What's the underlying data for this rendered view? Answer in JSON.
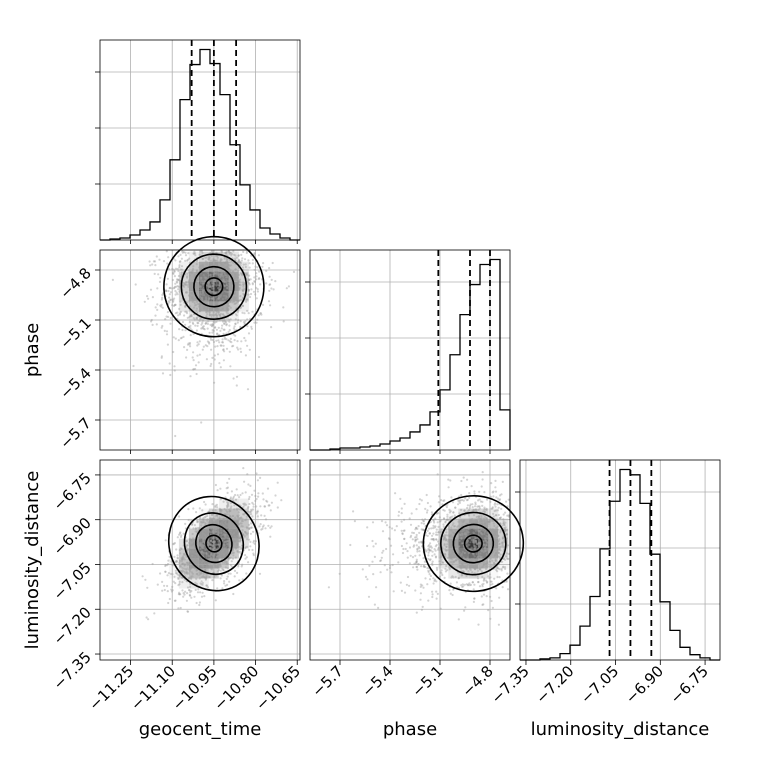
{
  "chart_data": {
    "type": "corner",
    "parameters": [
      "geocent_time",
      "phase",
      "luminosity_distance"
    ],
    "axes": {
      "geocent_time": {
        "range": [
          -11.36,
          -10.64
        ],
        "ticks": [
          -11.25,
          -11.1,
          -10.95,
          -10.8,
          -10.65
        ],
        "tick_labels": [
          "−11.25",
          "−11.10",
          "−10.95",
          "−10.80",
          "−10.65"
        ]
      },
      "phase": {
        "range": [
          -5.88,
          -4.68
        ],
        "ticks": [
          -5.7,
          -5.4,
          -5.1,
          -4.8
        ],
        "tick_labels": [
          "−5.7",
          "−5.4",
          "−5.1",
          "−4.8"
        ]
      },
      "luminosity_distance": {
        "range": [
          -7.37,
          -6.7
        ],
        "ticks": [
          -7.35,
          -7.2,
          -7.05,
          -6.9,
          -6.75
        ],
        "tick_labels": [
          "−7.35",
          "−7.20",
          "−7.05",
          "−6.90",
          "−6.75"
        ]
      }
    },
    "histograms": [
      {
        "parameter": "geocent_time",
        "bin_edges": [
          -11.36,
          -11.324,
          -11.288,
          -11.252,
          -11.216,
          -11.18,
          -11.144,
          -11.108,
          -11.072,
          -11.036,
          -11.0,
          -10.964,
          -10.928,
          -10.892,
          -10.856,
          -10.82,
          -10.784,
          -10.748,
          -10.712,
          -10.676,
          -10.64
        ],
        "counts": [
          0,
          1,
          2,
          5,
          10,
          18,
          40,
          80,
          140,
          175,
          190,
          176,
          145,
          95,
          55,
          30,
          12,
          6,
          2,
          0
        ],
        "quantiles": [
          -11.03,
          -10.95,
          -10.87
        ]
      },
      {
        "parameter": "phase",
        "bin_edges": [
          -5.88,
          -5.82,
          -5.76,
          -5.7,
          -5.64,
          -5.58,
          -5.52,
          -5.46,
          -5.4,
          -5.34,
          -5.28,
          -5.22,
          -5.16,
          -5.1,
          -5.04,
          -4.98,
          -4.92,
          -4.86,
          -4.8,
          -4.74,
          -4.68
        ],
        "counts": [
          0,
          0,
          1,
          2,
          2,
          3,
          4,
          6,
          9,
          12,
          18,
          25,
          38,
          60,
          95,
          135,
          165,
          185,
          190,
          40
        ],
        "quantiles": [
          -5.11,
          -4.92,
          -4.8
        ]
      },
      {
        "parameter": "luminosity_distance",
        "bin_edges": [
          -7.37,
          -7.3365,
          -7.303,
          -7.2695,
          -7.236,
          -7.2025,
          -7.169,
          -7.1355,
          -7.102,
          -7.0685,
          -7.035,
          -7.0015,
          -6.968,
          -6.9345,
          -6.901,
          -6.8675,
          -6.834,
          -6.8005,
          -6.767,
          -6.7335,
          -6.7
        ],
        "counts": [
          0,
          0,
          1,
          2,
          6,
          14,
          32,
          60,
          105,
          150,
          180,
          175,
          148,
          100,
          55,
          28,
          12,
          5,
          2,
          0
        ],
        "quantiles": [
          -7.07,
          -7.0,
          -6.93
        ]
      }
    ],
    "scatter_panels": [
      {
        "x": "geocent_time",
        "y": "phase",
        "center": [
          -10.95,
          -4.9
        ],
        "spread": [
          0.09,
          0.15
        ],
        "correlation": 0.05,
        "skew_y": "lower"
      },
      {
        "x": "geocent_time",
        "y": "luminosity_distance",
        "center": [
          -10.95,
          -6.98
        ],
        "spread": [
          0.08,
          0.08
        ],
        "correlation": 0.55,
        "skew_y": "none"
      },
      {
        "x": "phase",
        "y": "luminosity_distance",
        "center": [
          -4.9,
          -6.98
        ],
        "spread": [
          0.15,
          0.08
        ],
        "correlation": 0.1,
        "skew_x": "left"
      }
    ],
    "contour_levels": [
      "0.5-sigma",
      "1-sigma",
      "1.5-sigma",
      "2-sigma"
    ],
    "grid": true,
    "colors": {
      "line": "#000000",
      "points": "#9e9e9e",
      "grid": "#b0b0b0"
    }
  }
}
